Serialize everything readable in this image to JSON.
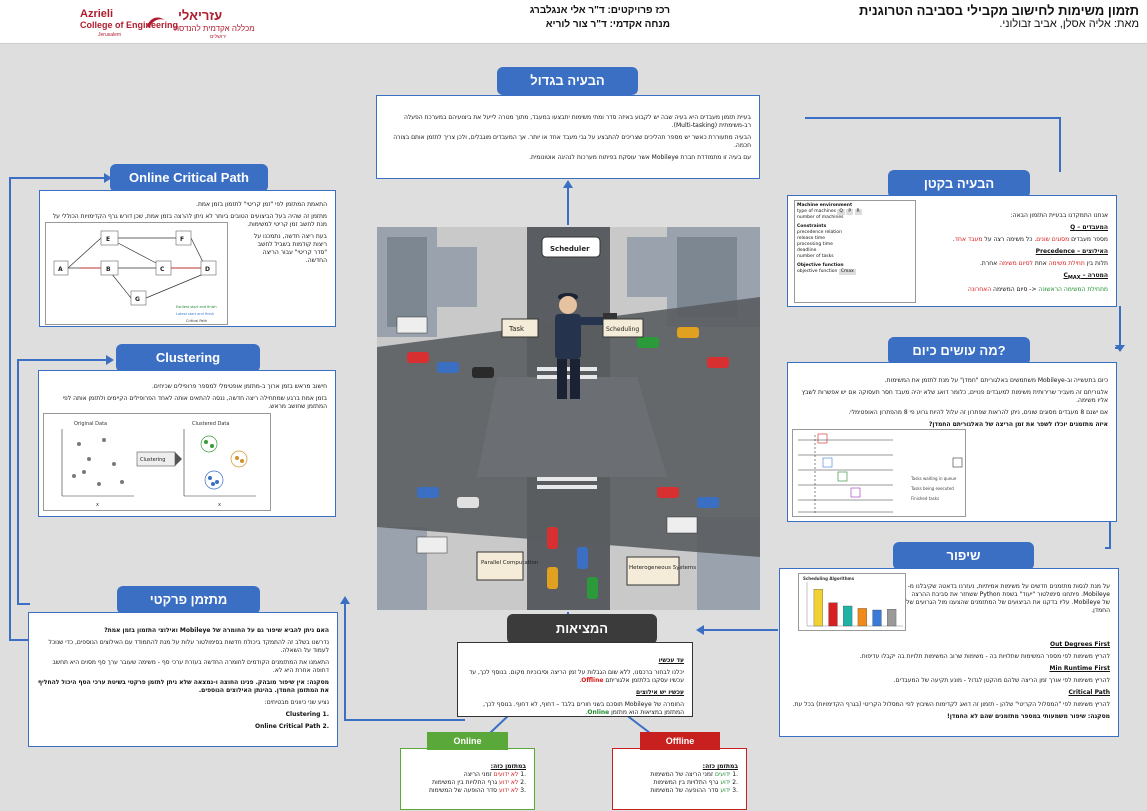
{
  "header": {
    "logo": {
      "en_line1": "Azrieli",
      "en_line2": "College of Engineering",
      "en_line3": "Jerusalem",
      "he_line1": "עזריאלי",
      "he_line2": "מכללה אקדמית להנדסה",
      "he_line3": "ירושלים"
    },
    "coordinator": "רכז פרויקטים: ד\"ר אלי אנגלברג",
    "advisor": "מנחה אקדמי: ד\"ר צור לוריא",
    "title": "תזמון משימות לחישוב מקבילי בסביבה הטרוגנית",
    "authors": "מאת: אליה אסלן, אביב זבולוני."
  },
  "big_problem": {
    "heading": "הבעיה בגדול",
    "p1": "בעיית תזמון מעבדים היא בעיה שבה יש לקבוע באיזה סדר ומתי משימות יתבצעו במעבד, מתוך מטרה לייעל את ביצועיהם במערכת הפעלה רב-משימתית (Multi-tasking).",
    "p2": "הבעיה מתעוררת כאשר יש מספר תהליכים שצריכים להתבצע על גבי מעבד אחד או יותר. אך המעבדים מוגבלים, ולכן צריך לתזמן אותם בצורה חכמה.",
    "p3": "עם בעיה זו מתמודדת חברת Mobileye אשר עוסקת בפיתוח מערכות לנהיגה אוטונומית."
  },
  "small_problem": {
    "heading": "הבעיה בקטן",
    "intro": "אנחנו התמקדנו בבעיית התזמון הבאה:",
    "processors_title": "המעבדים – Q",
    "processors_text_a": "מספר מעבדים",
    "processors_text_b": "מסוגים שונים",
    "processors_text_c": ". כל משימה רצה על",
    "processors_text_d": "מעבד אחד",
    "constraints_title": "האילוצים – Precedence",
    "constraints_text_a": "תלות בין",
    "constraints_text_b": "תחילת משימה",
    "constraints_text_c": "אחת",
    "constraints_text_d": "לסיום משימה",
    "constraints_text_e": "אחרת.",
    "goal_title": "המטרה – C",
    "goal_sub": "MAX",
    "goal_text_a": "מתחילת",
    "goal_text_b": "המשימה הראשונה",
    "goal_text_c": "<- סיום המשימה",
    "goal_text_d": "האחרונה",
    "form": {
      "section1": "Machine environment",
      "field1": "type of machines",
      "field2": "number of machines",
      "section2": "Constraints",
      "c1": "precedence relation",
      "c2": "release time",
      "c3": "processing time",
      "c4": "deadline",
      "c5": "number of tasks",
      "section3": "Objective function",
      "o1": "objective function",
      "opt_q": "Q",
      "opt_p": "P",
      "opt_r": "R",
      "opt_cmax": "Cmax"
    }
  },
  "today": {
    "heading": "מה עושים כיום?",
    "p1": "כיום בתעשייה וב-Mobileye משתמשים באלגוריתם \"חמדן\" על מנת לתזמן את המשימות.",
    "p2": "אלגוריתם זה מעביר שרירותית משימות למעבדים פנויים, כלומר דואג שלא יהיה מעבד חסר תעסוקה אם יש אפשרות לשבץ אליו משימה.",
    "p3": "אם ישנם 8 מעבדים מסוגים שונים, ניתן להראות שפתרון זה עלול להיות גרוע פי 8 מהפתרון האופטימלי.",
    "p4": "איזה מתזמנים יוכלו לשפר את זמן הריצה של האלגוריתם החמדן?",
    "legend1": "Tasks waiting in queue",
    "legend2": "Tasks being executed",
    "legend3": "Finished tasks"
  },
  "improve": {
    "heading": "שיפור",
    "intro": "על מנת לנסות מתזמנים חדשים על משימות אמיתיות, נעזרנו בדאטה שקיבלנו מ-Mobileye. פיתחנו סימולטור \"יעוד\" בשפת Python ששחזר את סביבת ההרצה של Mobileye. עליו בדקנו את הביצועים של המתזמנים שהצענו מול הגרועים של החמדן.",
    "s1_title": "Out Degrees First",
    "s1_text": "להריץ משימות לפי מספר המשימות שתלויות בה - משימות שרוב המשימות תלויות בה יקבלו עדיפות.",
    "s2_title": "Min Runtime First",
    "s2_text": "להריץ משימות לפי אורך זמן הריצה שלהם מהקטן לגדול - מונע תקיעה של המעבדים.",
    "s3_title": "Critical Path",
    "s3_text": "להריץ משימות לפי \"המסלול הקריטי\" שלהן - תזמון זה דואג לקדימות השיבוץ לפי המסלול הקריטי (בגרף הקדימויות) בכל עת.",
    "conclusion": "מסקנה: שיפור משמעותי במספר מתזמנים שהם לא החמדן!",
    "chart_title": "Scheduling Algorithms"
  },
  "reality": {
    "heading": "המציאות",
    "until_title": "עד עכשיו",
    "until_text_a": "יכלנו לבחור ברכסנו, ללא שום הגבלות על זמן הריצה וסיבוכיות מקום. בנוסף לכך, עד עכשיו עסקנו בלתזמן אלגוריתם",
    "until_text_b": "Offline",
    "now_title": "עכשיו יש אילוצים",
    "now_text_a": "החומרה של Mobileye תוסכם בשני חורים בלבד – דחוף, לא דחוף. בנוסף לכך, המתזמן במציאות הוא מתזמן",
    "now_text_b": "Online"
  },
  "online_tag": {
    "label": "Online",
    "head": "במתזמן כזה:",
    "i1a": "לא ידועים",
    "i1b": "זמני הריצה",
    "i2a": "לא ידוע",
    "i2b": "גרף התלויות בין המשימות",
    "i3a": "לא ידוע",
    "i3b": "סדר ההופעה של המשימות"
  },
  "offline_tag": {
    "label": "Offline",
    "head": "במתזמן כזה:",
    "i1a": "ידועים",
    "i1b": "זמני הריצה של המשימות",
    "i2a": "ידוע",
    "i2b": "גרף התלויות בין המשימות",
    "i3a": "ידוע",
    "i3b": "סדר ההופעה של המשימות"
  },
  "practical": {
    "heading": "מתזמן פרקטי",
    "p1": "האם ניתן להביא שיפור גם על החומרה של Mobileye ואילוצי התזמון בזמן אמת?",
    "p2": "נדרשנו בשלב זה להתמקד ביכולת חדשות בסימולטור עלות על מנת להתמודד עם האילוצים הנוספים, כדי שנוכל לעמוד על השאלה.",
    "p3": "התאמנו את המתזמנים הקודמים לחומרה החדשה בעזרת ערכי סף - משימה שעובר ערך סף מסוים היא תחשב דחופה אחרת היא לא.",
    "p4": "מסקנה: אין שיפור מובהק. פנינו החוצה ו-נמצאה שלא ניתן לתזמן פרקטי בשיטת ערכי הסף היכול להחליף את המתזמן החמדן. בהינתן האילוצים הנוספים.",
    "p5": "נציע שני כיוונים מבטיחים:",
    "li1": "Clustering",
    "li2": "Online Critical Path"
  },
  "ocp": {
    "heading": "Online Critical Path",
    "p1": "התאמת המתזמן לפי \"זמן קריטי\" לתזמון בזמן אמת.",
    "p2": "מתזמן זה שהיה בעל הביצועים הטובים ביותר לא ניתן להרצה בזמן אמת, שכן דורש גרף הקדימויות הכוללי על מנת לחשב זמן קריטי למשימות.",
    "p3": "בעת ריצה חדשה, נתמכנו על ריצות קודמות בשביל לחשב \"סדר קריטי\" עבור הריצה החדשה.",
    "legend1": "Earliest start and finish",
    "legend2": "Latest start and finish",
    "legend3": "Critical Path",
    "nodes": [
      "A",
      "B",
      "C",
      "D",
      "E",
      "F",
      "G"
    ]
  },
  "clustering": {
    "heading": "Clustering",
    "p1": "חישוב מראש בזמן ארוך ב-מתזמן אופטימלי למספר פרופילים שכיחים.",
    "p2": "בזמן אמת ברגע שמתחילה ריצה חדשה, ננסה להתאים אותה לאחד הפרופילים הקיימים ולתזמן אותה לפי המתזמן שחושב מראש.",
    "label_original": "Original Data",
    "label_clustered": "Clustered Data",
    "arrow_label": "Clustering",
    "axis_x": "x",
    "axis_y": "y"
  },
  "scene": {
    "scheduler": "Scheduler",
    "task": "Task",
    "scheduling": "Scheduling",
    "parallel": "Parallel Computation",
    "hetero": "Heterogeneous Systems"
  },
  "chart_data": {
    "type": "bar",
    "title": "Scheduling Algorithms",
    "categories": [
      "",
      "",
      "",
      "",
      "",
      ""
    ],
    "values": [
      92,
      58,
      50,
      44,
      40,
      42
    ],
    "colors": [
      "#f2d233",
      "#d82020",
      "#1fb3a8",
      "#f08a1a",
      "#3a7ad8",
      "#9a9a9a"
    ],
    "ylim": [
      0,
      100
    ]
  },
  "colors": {
    "blue": "#3a6fc4",
    "dark": "#3b3b3b",
    "online_green": "#5aa83a",
    "offline_red": "#c8201e"
  }
}
